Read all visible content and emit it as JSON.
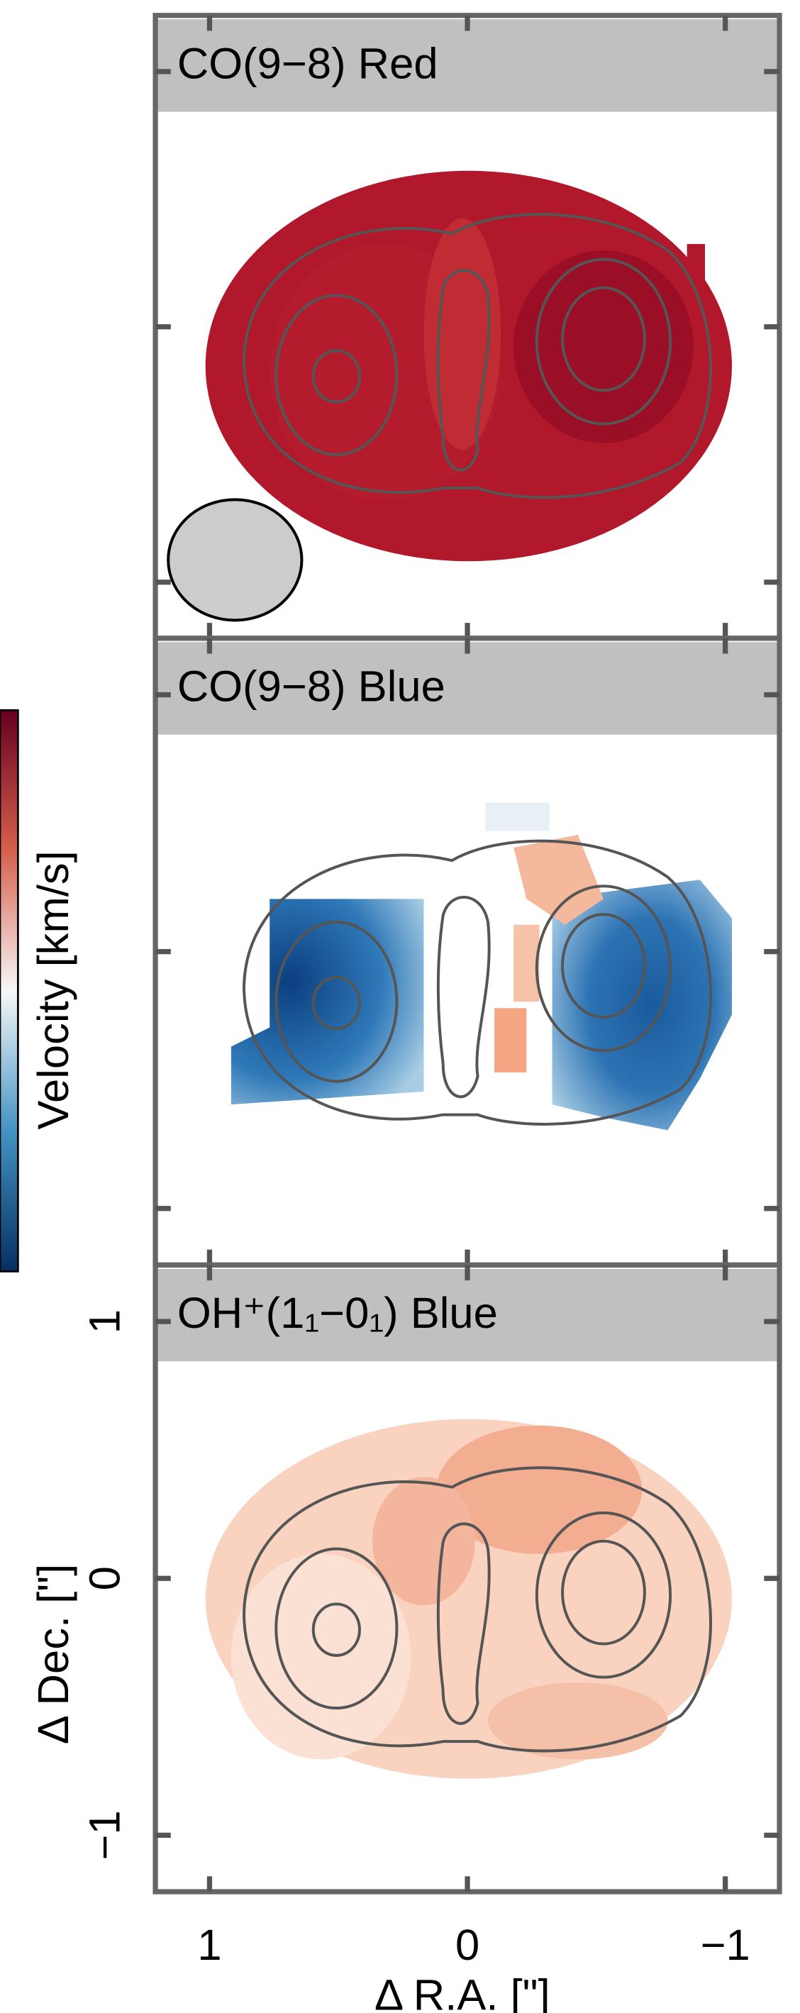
{
  "chart_data": {
    "type": "map",
    "panel_titles": [
      "CO(9−8) Red",
      "CO(9−8) Blue",
      "OH⁺(1₁−0₁) Blue"
    ],
    "colorbar_label": "Velocity [km/s]",
    "xlabel": "Δ R.A. [\"]",
    "ylabel": "Δ Dec. [\"]",
    "xlim": [
      1.21,
      -1.21
    ],
    "ylim": [
      -1.22,
      1.22
    ],
    "xticks": [
      1,
      0,
      {
        "value": -1,
        "label": "−1"
      }
    ],
    "yticks": [
      1,
      0,
      {
        "value": -1,
        "label": "−1"
      }
    ]
  }
}
